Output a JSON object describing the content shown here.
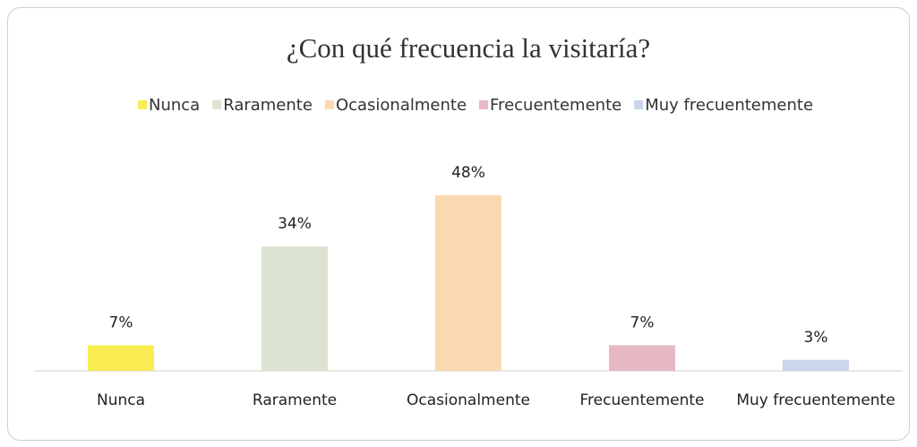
{
  "chart_data": {
    "type": "bar",
    "title": "¿Con qué frecuencia la visitaría?",
    "categories": [
      "Nunca",
      "Raramente",
      "Ocasionalmente",
      "Frecuentemente",
      "Muy frecuentemente"
    ],
    "values": [
      7,
      34,
      48,
      7,
      3
    ],
    "value_labels": [
      "7%",
      "34%",
      "48%",
      "7%",
      "3%"
    ],
    "colors": [
      "#f9ec52",
      "#dce3d1",
      "#fad9b1",
      "#e6b9c5",
      "#c9d5e8"
    ],
    "legend": "top"
  }
}
